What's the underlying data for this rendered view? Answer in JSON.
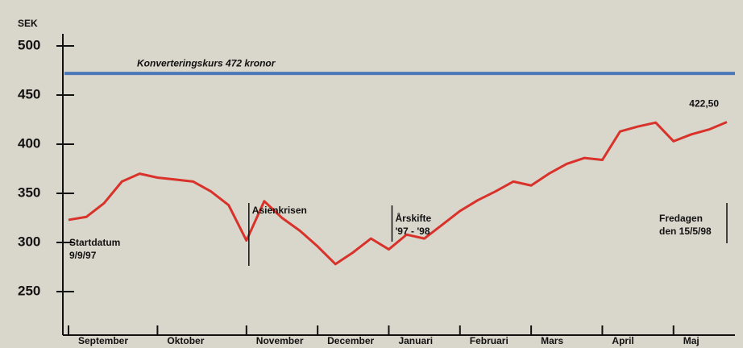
{
  "chart_data": {
    "type": "line",
    "y_label": "SEK",
    "categories": [
      "September",
      null,
      null,
      null,
      null,
      "Oktober",
      null,
      null,
      null,
      null,
      "November",
      null,
      null,
      null,
      "December",
      null,
      null,
      null,
      "Januari",
      null,
      null,
      null,
      "Februari",
      null,
      null,
      null,
      "Mars",
      null,
      null,
      null,
      "April",
      null,
      null,
      null,
      "Maj",
      null,
      null,
      null
    ],
    "series": [
      {
        "name": "SEK",
        "color": "#d8322a",
        "values": [
          323,
          326,
          340,
          362,
          370,
          366,
          364,
          362,
          352,
          338,
          302,
          342,
          325,
          312,
          296,
          278,
          290,
          304,
          293,
          308,
          304,
          318,
          332,
          343,
          352,
          362,
          358,
          370,
          380,
          386,
          384,
          413,
          418,
          422,
          403,
          410,
          415,
          422.5
        ],
        "value_labels": [
          null,
          null,
          null,
          null,
          null,
          null,
          null,
          null,
          null,
          null,
          null,
          null,
          null,
          null,
          null,
          null,
          null,
          null,
          null,
          null,
          null,
          null,
          null,
          null,
          null,
          null,
          null,
          null,
          null,
          null,
          null,
          null,
          null,
          null,
          null,
          null,
          null,
          "422,50"
        ]
      }
    ],
    "ylim": [
      250,
      500
    ],
    "yticks": [
      250,
      300,
      350,
      400,
      450,
      500
    ],
    "reference": {
      "value": 472,
      "label": "Konverteringskurs 472 kronor",
      "color": "#4a78b8"
    },
    "annotations": [
      {
        "index": 0,
        "lines": [
          "Startdatum",
          "9/9/97"
        ]
      },
      {
        "index": 10,
        "lines": [
          "Asienkrisen"
        ]
      },
      {
        "index": 18,
        "lines": [
          "Årskifte",
          "'97 - '98"
        ]
      },
      {
        "index": 37,
        "lines": [
          "Fredagen",
          "den 15/5/98"
        ]
      }
    ]
  }
}
